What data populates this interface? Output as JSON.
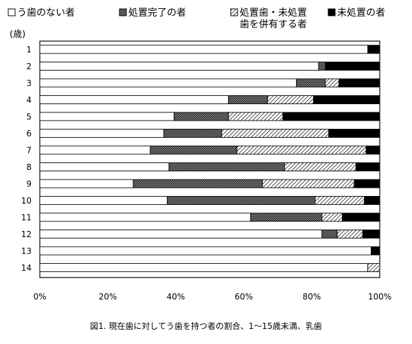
{
  "chart_data": {
    "type": "bar",
    "orientation": "horizontal",
    "stacked": true,
    "normalized": true,
    "y_unit_label": "(歳)",
    "categories": [
      "1",
      "2",
      "3",
      "4",
      "5",
      "6",
      "7",
      "8",
      "9",
      "10",
      "11",
      "12",
      "13",
      "14"
    ],
    "series": [
      {
        "name": "う歯のない者",
        "key": "none",
        "color": "#ffffff",
        "pattern": "none",
        "values": [
          96.5,
          82.0,
          75.5,
          55.5,
          39.5,
          36.5,
          32.5,
          38.0,
          27.5,
          37.5,
          62.0,
          83.0,
          97.5,
          96.5
        ]
      },
      {
        "name": "処置完了の者",
        "key": "treated",
        "color": "#555555",
        "pattern": "dots",
        "values": [
          0.0,
          2.0,
          8.5,
          11.5,
          16.0,
          17.0,
          25.5,
          34.0,
          38.0,
          43.5,
          21.0,
          4.5,
          0.0,
          0.0
        ]
      },
      {
        "name": "処置歯・未処置歯を併有する者",
        "name_lines": [
          "処置歯・未処置",
          "歯を併有する者"
        ],
        "key": "mixed",
        "color": "#ffffff",
        "pattern": "hatch",
        "values": [
          0.0,
          0.0,
          4.0,
          13.5,
          16.0,
          31.5,
          38.0,
          21.0,
          27.0,
          14.5,
          6.0,
          7.5,
          0.0,
          3.5
        ]
      },
      {
        "name": "未処置の者",
        "key": "untreated",
        "color": "#000000",
        "pattern": "solid",
        "values": [
          3.5,
          16.0,
          12.0,
          19.5,
          28.5,
          15.0,
          4.0,
          7.0,
          7.5,
          4.5,
          11.0,
          5.0,
          2.5,
          0.0
        ]
      }
    ],
    "x_ticks": [
      "0%",
      "20%",
      "40%",
      "60%",
      "80%",
      "100%"
    ],
    "xlim": [
      0,
      100
    ],
    "grid": false,
    "legend_position": "top"
  },
  "caption": "図1. 現在歯に対してう歯を持つ者の割合、1～15歳未満、乳歯"
}
